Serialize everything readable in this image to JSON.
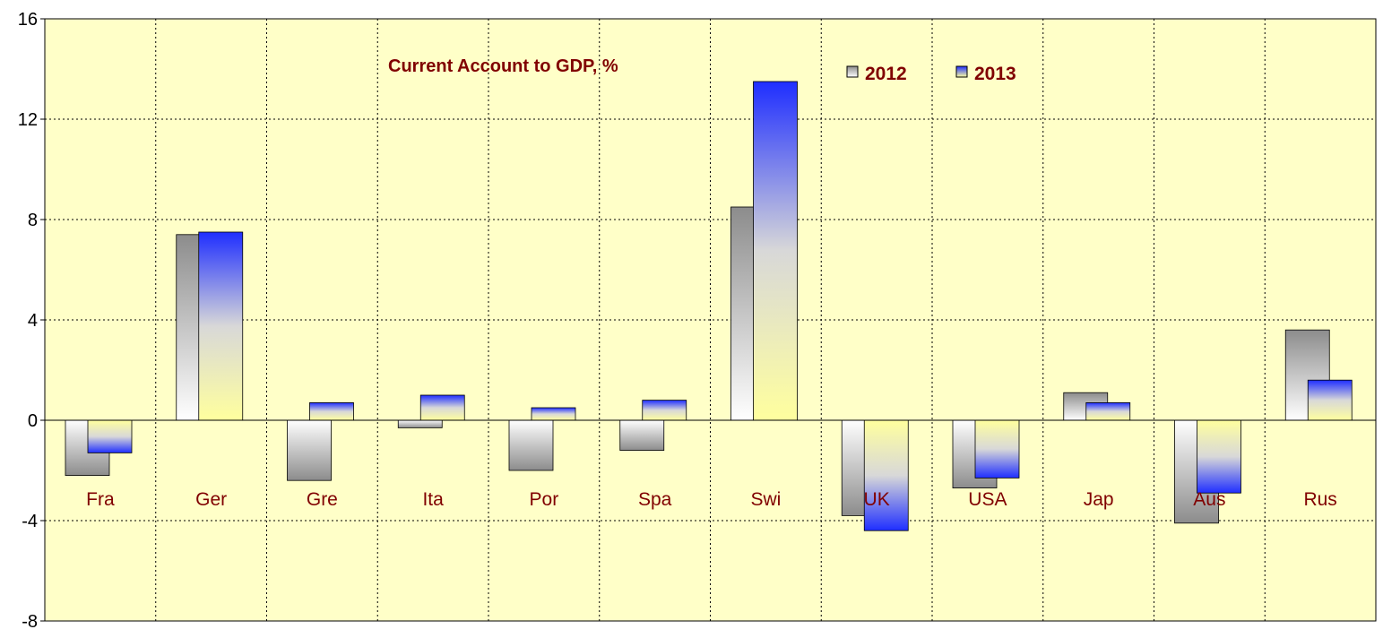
{
  "chart_data": {
    "type": "bar",
    "title": "Current Account  to GDP, %",
    "categories": [
      "Fra",
      "Ger",
      "Gre",
      "Ita",
      "Por",
      "Spa",
      "Swi",
      "UK",
      "USA",
      "Jap",
      "Aus",
      "Rus"
    ],
    "series": [
      {
        "name": "2012",
        "values": [
          -2.2,
          7.4,
          -2.4,
          -0.3,
          -2.0,
          -1.2,
          8.5,
          -3.8,
          -2.7,
          1.1,
          -4.1,
          3.6
        ]
      },
      {
        "name": "2013",
        "values": [
          -1.3,
          7.5,
          0.7,
          1.0,
          0.5,
          0.8,
          13.5,
          -4.4,
          -2.3,
          0.7,
          -2.9,
          1.6
        ]
      }
    ],
    "ylim": [
      -8,
      16
    ],
    "yticks": [
      16,
      12,
      8,
      4,
      0,
      -4,
      -8
    ],
    "grid": true,
    "legend_position": "top-center",
    "colors": {
      "plot_background": "#FFFFC8",
      "series_2012_dark": "#8C8C8C",
      "series_2012_light": "#FFFFFF",
      "series_2013_dark": "#1F2EFF",
      "series_2013_light": "#FFFFA8",
      "label_text": "#800000"
    }
  }
}
